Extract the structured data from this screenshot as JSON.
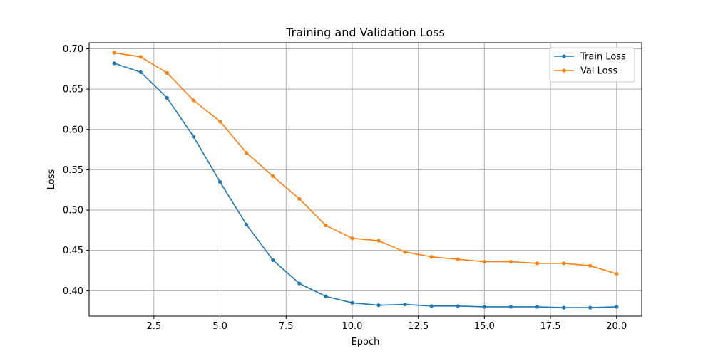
{
  "chart_data": {
    "type": "line",
    "title": "Training and Validation Loss",
    "xlabel": "Epoch",
    "ylabel": "Loss",
    "xlim": [
      0.05,
      20.95
    ],
    "ylim": [
      0.3685,
      0.7075
    ],
    "grid": true,
    "legend_position": "top-right",
    "x_ticks": [
      2.5,
      5.0,
      7.5,
      10.0,
      12.5,
      15.0,
      17.5,
      20.0
    ],
    "x_tick_labels": [
      "2.5",
      "5.0",
      "7.5",
      "10.0",
      "12.5",
      "15.0",
      "17.5",
      "20.0"
    ],
    "y_ticks": [
      0.4,
      0.45,
      0.5,
      0.55,
      0.6,
      0.65,
      0.7
    ],
    "y_tick_labels": [
      "0.40",
      "0.45",
      "0.50",
      "0.55",
      "0.60",
      "0.65",
      "0.70"
    ],
    "x": [
      1,
      2,
      3,
      4,
      5,
      6,
      7,
      8,
      9,
      10,
      11,
      12,
      13,
      14,
      15,
      16,
      17,
      18,
      19,
      20
    ],
    "series": [
      {
        "name": "Train Loss",
        "color": "#1f77b4",
        "values": [
          0.682,
          0.671,
          0.639,
          0.591,
          0.535,
          0.482,
          0.438,
          0.409,
          0.393,
          0.385,
          0.382,
          0.383,
          0.381,
          0.381,
          0.38,
          0.38,
          0.38,
          0.379,
          0.379,
          0.38
        ]
      },
      {
        "name": "Val Loss",
        "color": "#ff7f0e",
        "values": [
          0.695,
          0.69,
          0.67,
          0.636,
          0.61,
          0.571,
          0.542,
          0.514,
          0.481,
          0.465,
          0.462,
          0.448,
          0.442,
          0.439,
          0.436,
          0.436,
          0.434,
          0.434,
          0.431,
          0.421
        ]
      }
    ]
  }
}
